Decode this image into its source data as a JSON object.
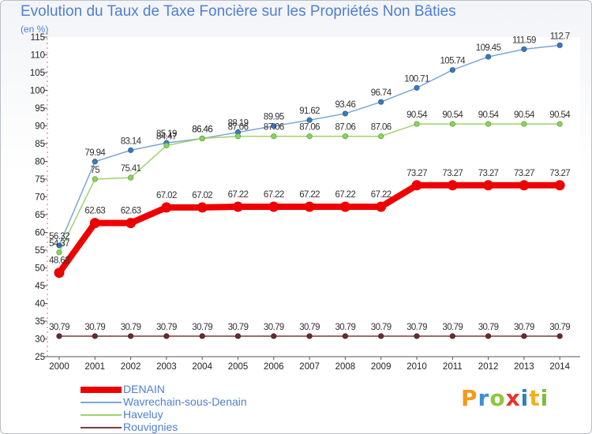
{
  "title": "Evolution du Taux de Taxe Foncière sur les Propriétés Non Bâties",
  "unit": "(en %)",
  "logo_text": "Proxiti",
  "chart_data": {
    "type": "line",
    "title": "Evolution du Taux de Taxe Foncière sur les Propriétés Non Bâties",
    "ylabel": "(en %)",
    "xlabel": "",
    "x": [
      "2000",
      "2001",
      "2002",
      "2003",
      "2004",
      "2005",
      "2006",
      "2007",
      "2008",
      "2009",
      "2010",
      "2011",
      "2012",
      "2013",
      "2014"
    ],
    "ylim": [
      25,
      115
    ],
    "yticks": [
      25,
      30,
      35,
      40,
      45,
      50,
      55,
      60,
      65,
      70,
      75,
      80,
      85,
      90,
      95,
      100,
      105,
      110,
      115
    ],
    "grid": false,
    "legend_position": "bottom-left",
    "series": [
      {
        "name": "DENAIN",
        "color": "#ee0000",
        "values": [
          48.62,
          62.63,
          62.63,
          67.02,
          67.02,
          67.22,
          67.22,
          67.22,
          67.22,
          67.22,
          73.27,
          73.27,
          73.27,
          73.27,
          73.27
        ],
        "labels": [
          "48.62",
          "62.63",
          "62.63",
          "67.02",
          "67.02",
          "67.22",
          "67.22",
          "67.22",
          "67.22",
          "67.22",
          "73.27",
          "73.27",
          "73.27",
          "73.27",
          "73.27"
        ]
      },
      {
        "name": "Wavrechain-sous-Denain",
        "color": "#7aa7d4",
        "values": [
          56.32,
          79.94,
          83.14,
          85.19,
          86.46,
          88.19,
          89.95,
          91.62,
          93.46,
          96.74,
          100.71,
          105.74,
          109.45,
          111.59,
          112.7
        ],
        "labels": [
          "56.32",
          "79.94",
          "83.14",
          "85.19",
          "86.46",
          "88.19",
          "89.95",
          "91.62",
          "93.46",
          "96.74",
          "100.71",
          "105.74",
          "109.45",
          "111.59",
          "112.7"
        ]
      },
      {
        "name": "Haveluy",
        "color": "#9dd36b",
        "values": [
          54.37,
          75,
          75.41,
          84.47,
          86.46,
          87.06,
          87.06,
          87.06,
          87.06,
          87.06,
          90.54,
          90.54,
          90.54,
          90.54,
          90.54
        ],
        "labels": [
          "54.37",
          "75",
          "75.41",
          "84.47",
          "86.46",
          "87.06",
          "87.06",
          "87.06",
          "87.06",
          "87.06",
          "90.54",
          "90.54",
          "90.54",
          "90.54",
          "90.54"
        ]
      },
      {
        "name": "Rouvignies",
        "color": "#7a3c3c",
        "values": [
          30.79,
          30.79,
          30.79,
          30.79,
          30.79,
          30.79,
          30.79,
          30.79,
          30.79,
          30.79,
          30.79,
          30.79,
          30.79,
          30.79,
          30.79
        ],
        "labels": [
          "30.79",
          "30.79",
          "30.79",
          "30.79",
          "30.79",
          "30.79",
          "30.79",
          "30.79",
          "30.79",
          "30.79",
          "30.79",
          "30.79",
          "30.79",
          "30.79",
          "30.79"
        ]
      }
    ]
  }
}
